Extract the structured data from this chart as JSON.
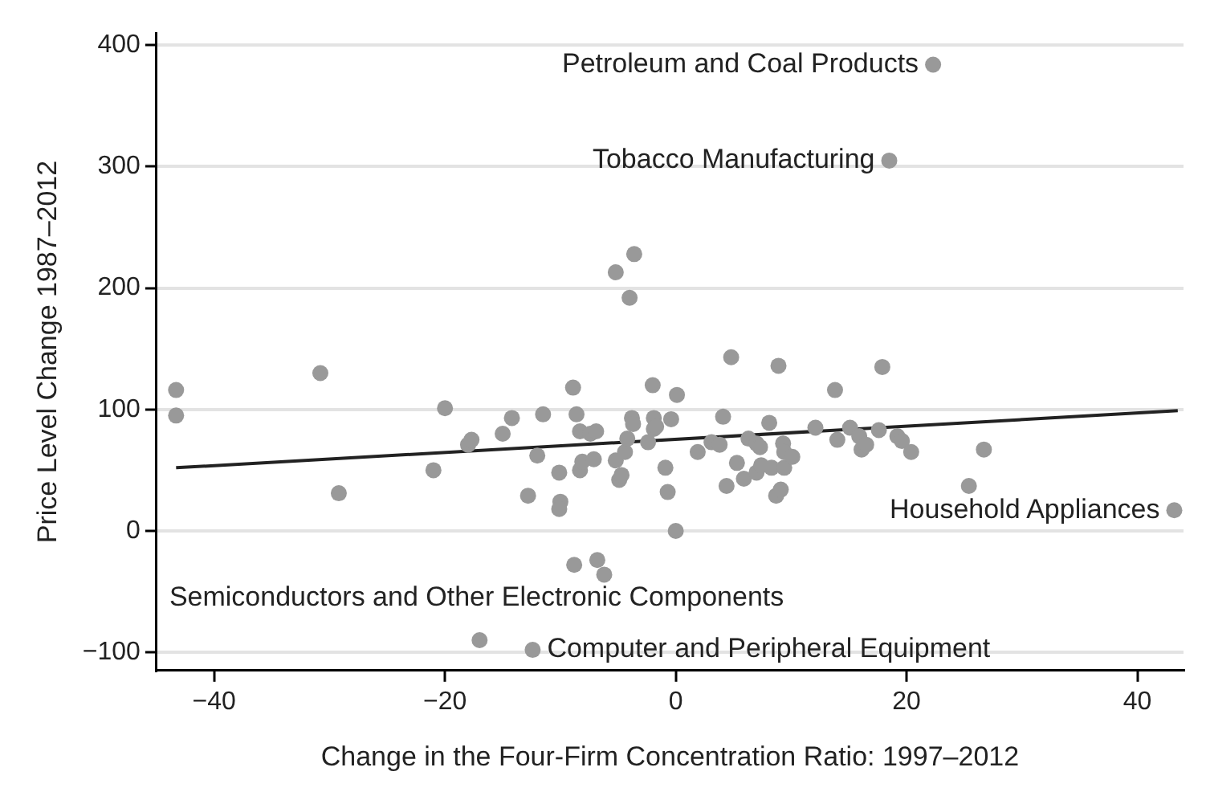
{
  "chart_data": {
    "type": "scatter",
    "xlabel": "Change in the Four-Firm Concentration Ratio: 1997–2012",
    "ylabel": "Price Level Change 1987–2012",
    "xlim": [
      -45,
      44
    ],
    "ylim": [
      -115,
      410
    ],
    "xticks": [
      {
        "value": -40,
        "label": "−40"
      },
      {
        "value": -20,
        "label": "−20"
      },
      0,
      20,
      40
    ],
    "yticks": [
      {
        "value": -100,
        "label": "−100"
      },
      0,
      100,
      200,
      300,
      400
    ],
    "grid": "y",
    "legend": false,
    "marker": "circle",
    "series": [
      {
        "color": "#999999",
        "x": [
          -43.3,
          -43.3,
          -30.8,
          -29.2,
          -21.0,
          -20.0,
          -18.0,
          -17.7,
          -15.0,
          -14.2,
          -12.8,
          -12.0,
          -11.5,
          -17.0,
          -12.4,
          -10.1,
          -10.0,
          -10.1,
          -8.9,
          -8.6,
          -8.3,
          -8.3,
          -8.1,
          -7.4,
          -6.9,
          -7.1,
          -8.8,
          -6.8,
          -6.2,
          -5.2,
          -3.6,
          -4.0,
          -5.2,
          -4.9,
          -4.7,
          -4.4,
          -4.2,
          -3.8,
          -3.7,
          -2.0,
          -2.4,
          -1.9,
          -1.9,
          -1.7,
          -0.9,
          -0.7,
          -0.4,
          0.1,
          0.0,
          1.9,
          3.1,
          3.8,
          4.1,
          4.8,
          4.4,
          5.3,
          5.9,
          6.3,
          7.0,
          7.3,
          7.0,
          7.4,
          8.1,
          8.3,
          8.9,
          8.7,
          9.1,
          9.3,
          9.4,
          9.4,
          10.1,
          12.1,
          13.8,
          14.0,
          15.1,
          15.9,
          16.1,
          16.5,
          17.6,
          17.9,
          19.2,
          19.6,
          20.4,
          25.4,
          26.7,
          43.2,
          22.3,
          18.5
        ],
        "values": [
          116,
          95,
          130,
          31,
          50,
          101,
          71,
          75,
          80,
          93,
          29,
          62,
          96,
          -90,
          -98,
          48,
          24,
          18,
          118,
          96,
          82,
          50,
          57,
          80,
          82,
          59,
          -28,
          -24,
          -36,
          213,
          228,
          192,
          58,
          42,
          46,
          65,
          76,
          93,
          88,
          120,
          73,
          93,
          84,
          86,
          52,
          32,
          92,
          112,
          0,
          65,
          73,
          71,
          94,
          143,
          37,
          56,
          43,
          76,
          72,
          69,
          48,
          54,
          89,
          52,
          136,
          29,
          34,
          72,
          65,
          52,
          61,
          85,
          116,
          75,
          85,
          78,
          67,
          71,
          83,
          135,
          78,
          74,
          65,
          37,
          67,
          17,
          384,
          305
        ]
      },
      {
        "type": "line",
        "color": "#222222",
        "x": [
          -43.3,
          43.5
        ],
        "values": [
          52,
          99
        ],
        "marker": "none"
      }
    ],
    "annotations": [
      {
        "text": "Petroleum and Coal Products",
        "x": 22.3,
        "y": 384
      },
      {
        "text": "Tobacco Manufacturing",
        "x": 18.5,
        "y": 305
      },
      {
        "text": "Household Appliances",
        "x": 43.2,
        "y": 17
      },
      {
        "text": "Semiconductors and Other Electronic Components",
        "x": -17.0,
        "y": -90
      },
      {
        "text": "Computer and Peripheral Equipment",
        "x": -12.4,
        "y": -98
      }
    ]
  }
}
